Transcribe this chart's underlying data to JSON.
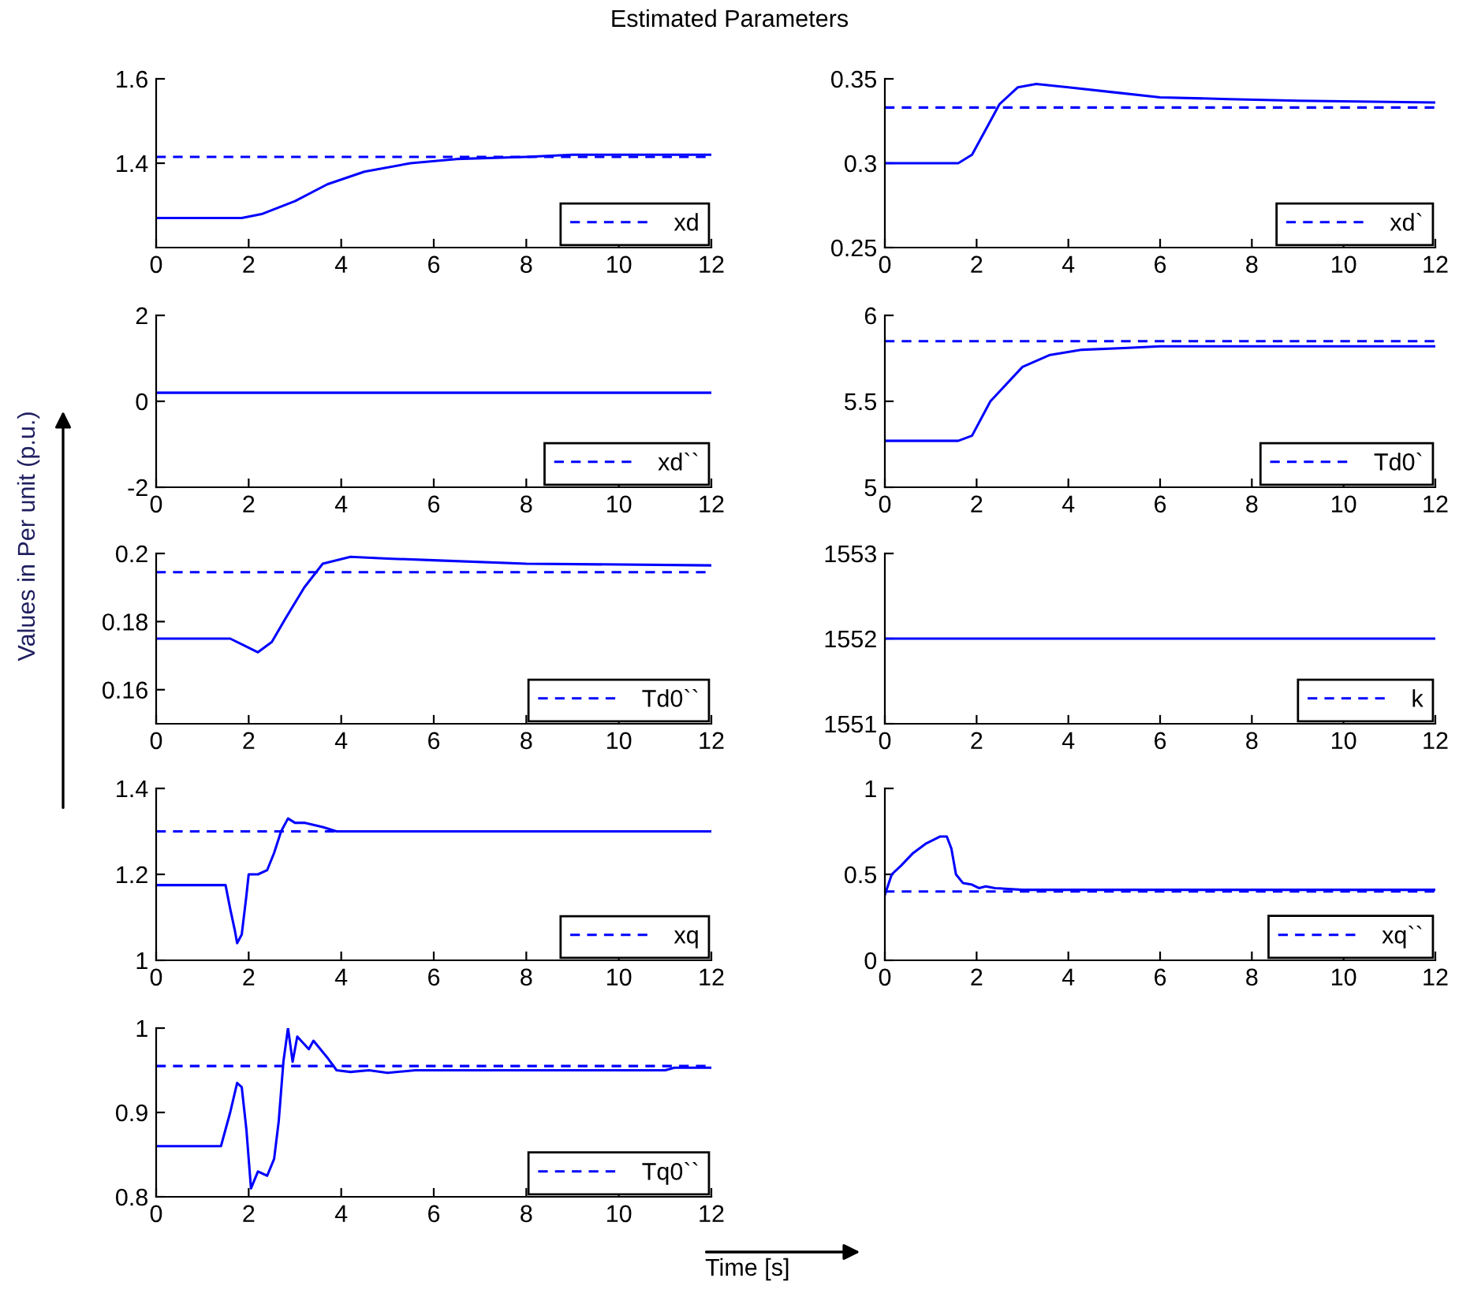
{
  "chart_data": [
    {
      "type": "line",
      "title": "Estimated Parameters",
      "xlim": [
        0,
        12
      ],
      "xticks": [
        0,
        2,
        4,
        6,
        8,
        10,
        12
      ],
      "ylim": [
        1.2,
        1.6
      ],
      "yticks": [
        1.4,
        1.6
      ],
      "legend": "bottom right",
      "grid": false,
      "series": [
        {
          "color": "#0000ff",
          "x": [
            0,
            1.85,
            2.3,
            3,
            3.7,
            4.5,
            5.5,
            6.5,
            8,
            9,
            12
          ],
          "values": [
            1.27,
            1.27,
            1.28,
            1.31,
            1.35,
            1.38,
            1.4,
            1.41,
            1.415,
            1.42,
            1.42
          ]
        },
        {
          "name": "xd",
          "color": "#0000ff",
          "line_style": "dashed",
          "x": [
            0,
            12
          ],
          "values": [
            1.415,
            1.415
          ]
        }
      ]
    },
    {
      "type": "line",
      "xlim": [
        0,
        12
      ],
      "xticks": [
        0,
        2,
        4,
        6,
        8,
        10,
        12
      ],
      "ylim": [
        0.25,
        0.35
      ],
      "yticks": [
        0.25,
        0.3,
        0.35
      ],
      "legend": "bottom right",
      "grid": false,
      "series": [
        {
          "color": "#0000ff",
          "x": [
            0,
            1.6,
            1.9,
            2.2,
            2.5,
            2.9,
            3.3,
            4,
            5,
            6,
            7.5,
            9,
            12
          ],
          "values": [
            0.3,
            0.3,
            0.305,
            0.32,
            0.335,
            0.345,
            0.347,
            0.345,
            0.342,
            0.339,
            0.338,
            0.337,
            0.336
          ]
        },
        {
          "name": "xd`",
          "color": "#0000ff",
          "line_style": "dashed",
          "x": [
            0,
            12
          ],
          "values": [
            0.333,
            0.333
          ]
        }
      ]
    },
    {
      "type": "line",
      "xlim": [
        0,
        12
      ],
      "xticks": [
        0,
        2,
        4,
        6,
        8,
        10,
        12
      ],
      "ylim": [
        -2,
        2
      ],
      "yticks": [
        -2,
        0,
        2
      ],
      "legend": "bottom right",
      "grid": false,
      "series": [
        {
          "color": "#0000ff",
          "x": [
            0,
            12
          ],
          "values": [
            0.2,
            0.2
          ]
        },
        {
          "name": "xd``",
          "color": "#0000ff",
          "line_style": "dashed",
          "values": [
            null
          ]
        }
      ]
    },
    {
      "type": "line",
      "xlim": [
        0,
        12
      ],
      "xticks": [
        0,
        2,
        4,
        6,
        8,
        10,
        12
      ],
      "ylim": [
        5,
        6
      ],
      "yticks": [
        5,
        5.5,
        6
      ],
      "legend": "bottom right",
      "grid": false,
      "series": [
        {
          "color": "#0000ff",
          "x": [
            0,
            1.6,
            1.9,
            2.3,
            3,
            3.6,
            4.3,
            5.2,
            6,
            12
          ],
          "values": [
            5.27,
            5.27,
            5.3,
            5.5,
            5.7,
            5.77,
            5.8,
            5.81,
            5.82,
            5.82
          ]
        },
        {
          "name": "Td0`",
          "color": "#0000ff",
          "line_style": "dashed",
          "x": [
            0,
            12
          ],
          "values": [
            5.85,
            5.85
          ]
        }
      ]
    },
    {
      "type": "line",
      "ylabel": "Values in Per unit (p.u.)",
      "xlim": [
        0,
        12
      ],
      "xticks": [
        0,
        2,
        4,
        6,
        8,
        10,
        12
      ],
      "ylim": [
        0.15,
        0.2
      ],
      "yticks": [
        0.16,
        0.18,
        0.2
      ],
      "legend": "bottom right",
      "grid": false,
      "series": [
        {
          "color": "#0000ff",
          "x": [
            0,
            1.6,
            1.9,
            2.2,
            2.5,
            2.8,
            3.2,
            3.6,
            4.2,
            5,
            6,
            8,
            12
          ],
          "values": [
            0.175,
            0.175,
            0.173,
            0.171,
            0.174,
            0.181,
            0.19,
            0.197,
            0.199,
            0.1985,
            0.198,
            0.197,
            0.1965
          ]
        },
        {
          "name": "Td0``",
          "color": "#0000ff",
          "line_style": "dashed",
          "x": [
            0,
            12
          ],
          "values": [
            0.1945,
            0.1945
          ]
        }
      ]
    },
    {
      "type": "line",
      "xlim": [
        0,
        12
      ],
      "xticks": [
        0,
        2,
        4,
        6,
        8,
        10,
        12
      ],
      "ylim": [
        1551,
        1553
      ],
      "yticks": [
        1551,
        1552,
        1553
      ],
      "legend": "bottom right",
      "grid": false,
      "series": [
        {
          "color": "#0000ff",
          "x": [
            0,
            12
          ],
          "values": [
            1552,
            1552
          ]
        },
        {
          "name": "k",
          "color": "#0000ff",
          "line_style": "dashed",
          "values": [
            null
          ]
        }
      ]
    },
    {
      "type": "line",
      "xlim": [
        0,
        12
      ],
      "xticks": [
        0,
        2,
        4,
        6,
        8,
        10,
        12
      ],
      "ylim": [
        1,
        1.4
      ],
      "yticks": [
        1,
        1.2,
        1.4
      ],
      "legend": "bottom right",
      "grid": false,
      "series": [
        {
          "color": "#0000ff",
          "x": [
            0,
            1.5,
            1.6,
            1.7,
            1.75,
            1.85,
            1.95,
            2.0,
            2.2,
            2.4,
            2.55,
            2.7,
            2.85,
            3.0,
            3.2,
            3.6,
            3.9,
            12
          ],
          "values": [
            1.175,
            1.175,
            1.12,
            1.07,
            1.04,
            1.06,
            1.15,
            1.2,
            1.2,
            1.21,
            1.25,
            1.3,
            1.33,
            1.32,
            1.32,
            1.31,
            1.3,
            1.3
          ]
        },
        {
          "name": "xq",
          "color": "#0000ff",
          "line_style": "dashed",
          "x": [
            0,
            12
          ],
          "values": [
            1.3,
            1.3
          ]
        }
      ]
    },
    {
      "type": "line",
      "xlim": [
        0,
        12
      ],
      "xticks": [
        0,
        2,
        4,
        6,
        8,
        10,
        12
      ],
      "ylim": [
        0,
        1
      ],
      "yticks": [
        0,
        0.5,
        1
      ],
      "legend": "bottom right",
      "grid": false,
      "series": [
        {
          "color": "#0000ff",
          "x": [
            0,
            0.15,
            0.35,
            0.6,
            0.9,
            1.2,
            1.35,
            1.45,
            1.55,
            1.7,
            1.9,
            2.05,
            2.2,
            2.4,
            3,
            12
          ],
          "values": [
            0.38,
            0.5,
            0.55,
            0.62,
            0.68,
            0.72,
            0.72,
            0.65,
            0.5,
            0.45,
            0.44,
            0.42,
            0.43,
            0.42,
            0.41,
            0.41
          ]
        },
        {
          "name": "xq``",
          "color": "#0000ff",
          "line_style": "dashed",
          "x": [
            0,
            12
          ],
          "values": [
            0.4,
            0.4
          ]
        }
      ]
    },
    {
      "type": "line",
      "xlabel": "Time [s]",
      "xlim": [
        0,
        12
      ],
      "xticks": [
        0,
        2,
        4,
        6,
        8,
        10,
        12
      ],
      "ylim": [
        0.8,
        1
      ],
      "yticks": [
        0.8,
        0.9,
        1
      ],
      "legend": "bottom right",
      "grid": false,
      "series": [
        {
          "color": "#0000ff",
          "x": [
            0,
            1.4,
            1.6,
            1.75,
            1.85,
            1.95,
            2.05,
            2.2,
            2.4,
            2.55,
            2.65,
            2.75,
            2.85,
            2.95,
            3.05,
            3.3,
            3.4,
            3.7,
            3.9,
            4.2,
            4.6,
            5,
            5.6,
            11,
            11.2,
            12
          ],
          "values": [
            0.86,
            0.86,
            0.9,
            0.935,
            0.93,
            0.88,
            0.81,
            0.83,
            0.825,
            0.845,
            0.89,
            0.96,
            1.0,
            0.96,
            0.99,
            0.975,
            0.985,
            0.965,
            0.95,
            0.948,
            0.95,
            0.947,
            0.95,
            0.95,
            0.953,
            0.953
          ]
        },
        {
          "name": "Tq0``",
          "color": "#0000ff",
          "line_style": "dashed",
          "x": [
            0,
            12
          ],
          "values": [
            0.955,
            0.955
          ]
        }
      ]
    }
  ]
}
